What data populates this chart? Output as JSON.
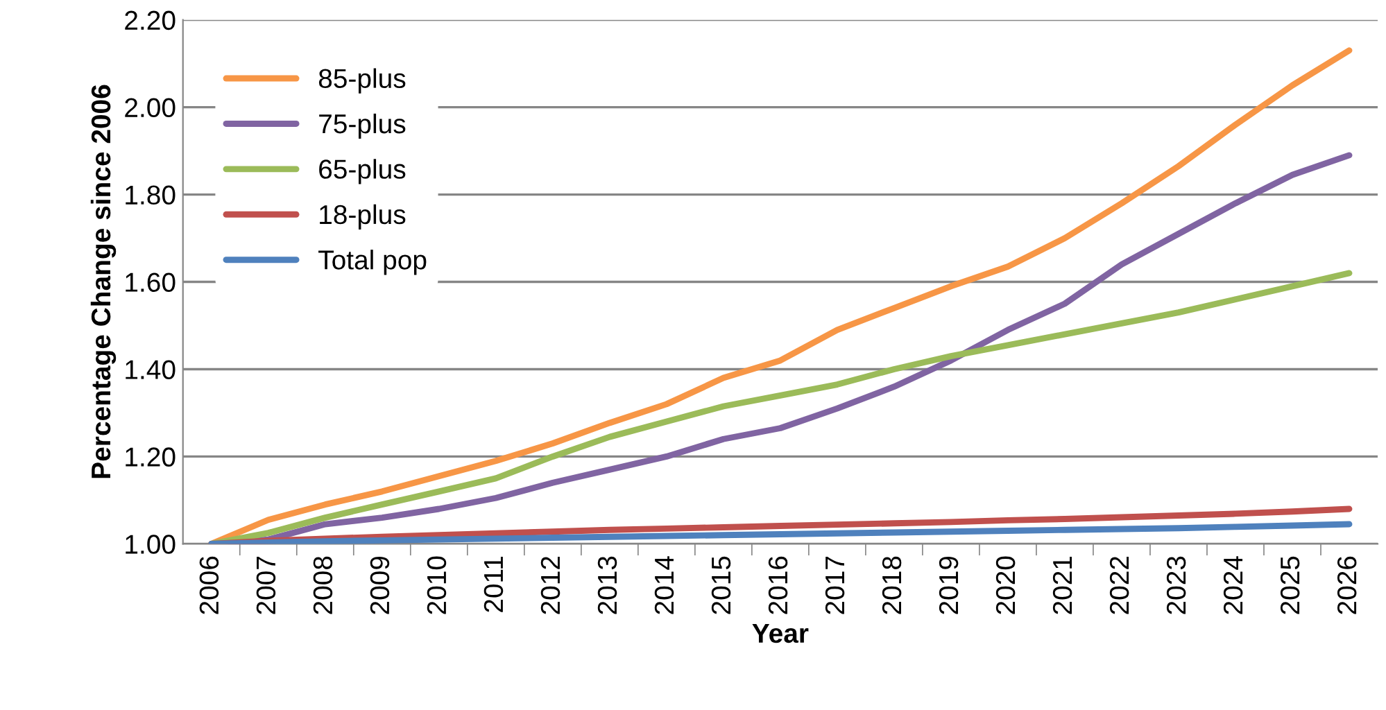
{
  "chart_data": {
    "type": "line",
    "xlabel": "Year",
    "ylabel": "Percentage Change since 2006",
    "categories": [
      "2006",
      "2007",
      "2008",
      "2009",
      "2010",
      "2011",
      "2012",
      "2013",
      "2014",
      "2015",
      "2016",
      "2017",
      "2018",
      "2019",
      "2020",
      "2021",
      "2022",
      "2023",
      "2024",
      "2025",
      "2026"
    ],
    "series": [
      {
        "name": "85-plus",
        "color": "#f79646",
        "values": [
          1.0,
          1.055,
          1.09,
          1.12,
          1.155,
          1.19,
          1.23,
          1.277,
          1.32,
          1.38,
          1.42,
          1.49,
          1.54,
          1.59,
          1.635,
          1.7,
          1.78,
          1.865,
          1.96,
          2.05,
          2.13
        ]
      },
      {
        "name": "75-plus",
        "color": "#8064a2",
        "values": [
          1.0,
          1.01,
          1.045,
          1.06,
          1.08,
          1.105,
          1.14,
          1.17,
          1.2,
          1.24,
          1.265,
          1.31,
          1.36,
          1.42,
          1.49,
          1.55,
          1.64,
          1.71,
          1.78,
          1.845,
          1.89
        ]
      },
      {
        "name": "65-plus",
        "color": "#9bbb59",
        "values": [
          1.0,
          1.025,
          1.06,
          1.09,
          1.12,
          1.15,
          1.2,
          1.245,
          1.28,
          1.315,
          1.34,
          1.365,
          1.4,
          1.43,
          1.455,
          1.48,
          1.505,
          1.53,
          1.56,
          1.59,
          1.62
        ]
      },
      {
        "name": "18-plus",
        "color": "#c0504d",
        "values": [
          1.0,
          1.007,
          1.012,
          1.016,
          1.02,
          1.024,
          1.028,
          1.032,
          1.035,
          1.038,
          1.041,
          1.044,
          1.047,
          1.05,
          1.054,
          1.057,
          1.061,
          1.065,
          1.069,
          1.074,
          1.08
        ]
      },
      {
        "name": "Total pop",
        "color": "#4f81bd",
        "values": [
          1.0,
          1.003,
          1.006,
          1.008,
          1.01,
          1.012,
          1.014,
          1.016,
          1.018,
          1.02,
          1.022,
          1.024,
          1.026,
          1.028,
          1.03,
          1.032,
          1.034,
          1.036,
          1.039,
          1.042,
          1.045
        ]
      }
    ],
    "ylim": [
      1.0,
      2.2
    ],
    "yticks": [
      {
        "value": 1.0,
        "label": "1.00"
      },
      {
        "value": 1.2,
        "label": "1.20"
      },
      {
        "value": 1.4,
        "label": "1.40"
      },
      {
        "value": 1.6,
        "label": "1.60"
      },
      {
        "value": 1.8,
        "label": "1.80"
      },
      {
        "value": 2.0,
        "label": "2.00"
      },
      {
        "value": 2.2,
        "label": "2.20"
      }
    ],
    "grid": "y",
    "legend": "top left",
    "marker": "none",
    "line_style": "solid"
  }
}
